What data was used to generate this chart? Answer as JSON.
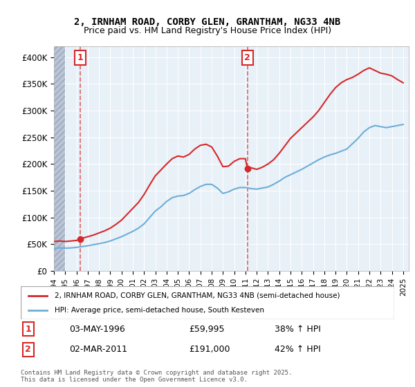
{
  "title_line1": "2, IRNHAM ROAD, CORBY GLEN, GRANTHAM, NG33 4NB",
  "title_line2": "Price paid vs. HM Land Registry's House Price Index (HPI)",
  "ylabel_ticks": [
    "£0",
    "£50K",
    "£100K",
    "£150K",
    "£200K",
    "£250K",
    "£300K",
    "£350K",
    "£400K"
  ],
  "ytick_values": [
    0,
    50000,
    100000,
    150000,
    200000,
    250000,
    300000,
    350000,
    400000
  ],
  "ylim": [
    0,
    420000
  ],
  "xlim_start": 1994.0,
  "xlim_end": 2025.5,
  "xticks": [
    1994,
    1995,
    1996,
    1997,
    1998,
    1999,
    2000,
    2001,
    2002,
    2003,
    2004,
    2005,
    2006,
    2007,
    2008,
    2009,
    2010,
    2011,
    2012,
    2013,
    2014,
    2015,
    2016,
    2017,
    2018,
    2019,
    2020,
    2021,
    2022,
    2023,
    2024,
    2025
  ],
  "hpi_color": "#6baed6",
  "price_color": "#d62728",
  "bg_color": "#e8f0f8",
  "grid_color": "#ffffff",
  "purchase1_year": 1996.35,
  "purchase1_price": 59995,
  "purchase2_year": 2011.17,
  "purchase2_price": 191000,
  "legend_line1": "2, IRNHAM ROAD, CORBY GLEN, GRANTHAM, NG33 4NB (semi-detached house)",
  "legend_line2": "HPI: Average price, semi-detached house, South Kesteven",
  "annotation1_label": "1",
  "annotation1_date": "03-MAY-1996",
  "annotation1_price": "£59,995",
  "annotation1_hpi": "38% ↑ HPI",
  "annotation2_label": "2",
  "annotation2_date": "02-MAR-2011",
  "annotation2_price": "£191,000",
  "annotation2_hpi": "42% ↑ HPI",
  "footnote": "Contains HM Land Registry data © Crown copyright and database right 2025.\nThis data is licensed under the Open Government Licence v3.0.",
  "hpi_data": [
    [
      1994.0,
      42000
    ],
    [
      1994.5,
      43000
    ],
    [
      1995.0,
      42500
    ],
    [
      1995.5,
      43000
    ],
    [
      1996.0,
      44000
    ],
    [
      1996.5,
      45500
    ],
    [
      1997.0,
      47000
    ],
    [
      1997.5,
      49000
    ],
    [
      1998.0,
      51000
    ],
    [
      1998.5,
      53000
    ],
    [
      1999.0,
      56000
    ],
    [
      1999.5,
      60000
    ],
    [
      2000.0,
      64000
    ],
    [
      2000.5,
      69000
    ],
    [
      2001.0,
      74000
    ],
    [
      2001.5,
      80000
    ],
    [
      2002.0,
      88000
    ],
    [
      2002.5,
      100000
    ],
    [
      2003.0,
      112000
    ],
    [
      2003.5,
      120000
    ],
    [
      2004.0,
      130000
    ],
    [
      2004.5,
      137000
    ],
    [
      2005.0,
      140000
    ],
    [
      2005.5,
      141000
    ],
    [
      2006.0,
      145000
    ],
    [
      2006.5,
      152000
    ],
    [
      2007.0,
      158000
    ],
    [
      2007.5,
      162000
    ],
    [
      2008.0,
      162000
    ],
    [
      2008.5,
      155000
    ],
    [
      2009.0,
      145000
    ],
    [
      2009.5,
      148000
    ],
    [
      2010.0,
      153000
    ],
    [
      2010.5,
      156000
    ],
    [
      2011.0,
      156000
    ],
    [
      2011.5,
      154000
    ],
    [
      2012.0,
      153000
    ],
    [
      2012.5,
      155000
    ],
    [
      2013.0,
      157000
    ],
    [
      2013.5,
      162000
    ],
    [
      2014.0,
      168000
    ],
    [
      2014.5,
      175000
    ],
    [
      2015.0,
      180000
    ],
    [
      2015.5,
      185000
    ],
    [
      2016.0,
      190000
    ],
    [
      2016.5,
      196000
    ],
    [
      2017.0,
      202000
    ],
    [
      2017.5,
      208000
    ],
    [
      2018.0,
      213000
    ],
    [
      2018.5,
      217000
    ],
    [
      2019.0,
      220000
    ],
    [
      2019.5,
      224000
    ],
    [
      2020.0,
      228000
    ],
    [
      2020.5,
      238000
    ],
    [
      2021.0,
      248000
    ],
    [
      2021.5,
      260000
    ],
    [
      2022.0,
      268000
    ],
    [
      2022.5,
      272000
    ],
    [
      2023.0,
      270000
    ],
    [
      2023.5,
      268000
    ],
    [
      2024.0,
      270000
    ],
    [
      2024.5,
      272000
    ],
    [
      2025.0,
      274000
    ]
  ],
  "price_data": [
    [
      1994.0,
      55000
    ],
    [
      1994.5,
      56000
    ],
    [
      1995.0,
      55000
    ],
    [
      1995.5,
      56000
    ],
    [
      1996.0,
      57000
    ],
    [
      1996.35,
      59995
    ],
    [
      1996.5,
      61000
    ],
    [
      1997.0,
      64000
    ],
    [
      1997.5,
      67000
    ],
    [
      1998.0,
      71000
    ],
    [
      1998.5,
      75000
    ],
    [
      1999.0,
      80000
    ],
    [
      1999.5,
      87000
    ],
    [
      2000.0,
      95000
    ],
    [
      2000.5,
      106000
    ],
    [
      2001.0,
      117000
    ],
    [
      2001.5,
      128000
    ],
    [
      2002.0,
      143000
    ],
    [
      2002.5,
      161000
    ],
    [
      2003.0,
      178000
    ],
    [
      2003.5,
      189000
    ],
    [
      2004.0,
      200000
    ],
    [
      2004.5,
      210000
    ],
    [
      2005.0,
      215000
    ],
    [
      2005.5,
      213000
    ],
    [
      2006.0,
      218000
    ],
    [
      2006.5,
      228000
    ],
    [
      2007.0,
      235000
    ],
    [
      2007.5,
      237000
    ],
    [
      2008.0,
      232000
    ],
    [
      2008.5,
      215000
    ],
    [
      2009.0,
      195000
    ],
    [
      2009.5,
      196000
    ],
    [
      2010.0,
      205000
    ],
    [
      2010.5,
      210000
    ],
    [
      2011.0,
      210000
    ],
    [
      2011.17,
      191000
    ],
    [
      2011.5,
      193000
    ],
    [
      2012.0,
      190000
    ],
    [
      2012.5,
      194000
    ],
    [
      2013.0,
      200000
    ],
    [
      2013.5,
      208000
    ],
    [
      2014.0,
      220000
    ],
    [
      2014.5,
      234000
    ],
    [
      2015.0,
      248000
    ],
    [
      2015.5,
      258000
    ],
    [
      2016.0,
      268000
    ],
    [
      2016.5,
      278000
    ],
    [
      2017.0,
      288000
    ],
    [
      2017.5,
      300000
    ],
    [
      2018.0,
      315000
    ],
    [
      2018.5,
      330000
    ],
    [
      2019.0,
      343000
    ],
    [
      2019.5,
      352000
    ],
    [
      2020.0,
      358000
    ],
    [
      2020.5,
      362000
    ],
    [
      2021.0,
      368000
    ],
    [
      2021.5,
      375000
    ],
    [
      2022.0,
      380000
    ],
    [
      2022.5,
      375000
    ],
    [
      2023.0,
      370000
    ],
    [
      2023.5,
      368000
    ],
    [
      2024.0,
      365000
    ],
    [
      2024.5,
      358000
    ],
    [
      2025.0,
      352000
    ]
  ]
}
